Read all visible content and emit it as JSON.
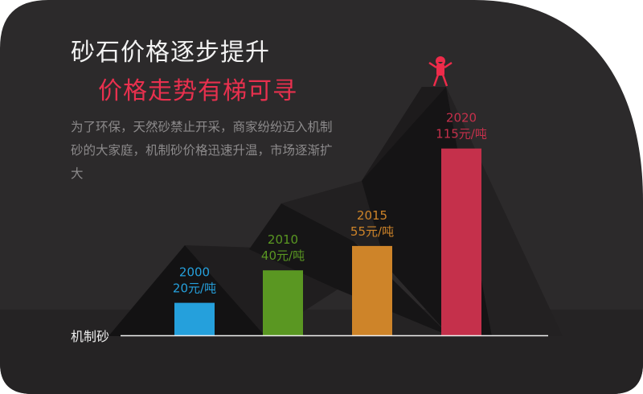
{
  "header": {
    "title": "砂石价格逐步提升",
    "subtitle": "价格走势有梯可寻",
    "description": "为了环保，天然砂禁止开采，商家纷纷迈入机制砂的大家庭，机制砂价格迅速升温，市场逐渐扩大"
  },
  "colors": {
    "background": "#2c2a2b",
    "accent": "#e8304e"
  },
  "icons": {
    "mascot": "cheering-figure-icon"
  },
  "chart_data": {
    "type": "bar",
    "title": "",
    "xlabel": "机制砂",
    "ylabel": "",
    "categories": [
      "2000",
      "2010",
      "2015",
      "2020"
    ],
    "values": [
      20,
      40,
      55,
      115
    ],
    "value_labels": [
      "20元/吨",
      "40元/吨",
      "55元/吨",
      "115元/吨"
    ],
    "bar_colors": [
      "#25a0dc",
      "#5a9722",
      "#ce8429",
      "#c5304b"
    ],
    "grid": false,
    "legend": "none"
  }
}
